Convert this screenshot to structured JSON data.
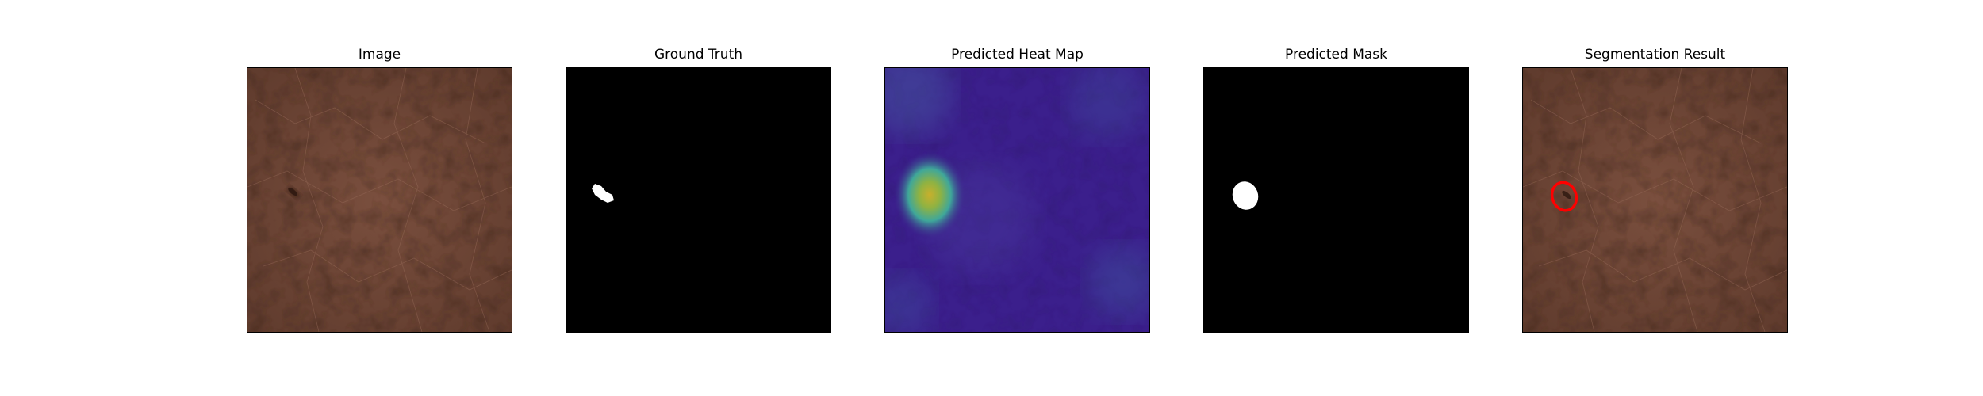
{
  "panels": [
    {
      "title": "Image"
    },
    {
      "title": "Ground Truth"
    },
    {
      "title": "Predicted Heat Map"
    },
    {
      "title": "Predicted Mask"
    },
    {
      "title": "Segmentation Result"
    }
  ],
  "colors": {
    "leather": "#6e4636",
    "mask_background": "#000000",
    "mask_foreground": "#ffffff",
    "heatmap_low": "#3b1f8c",
    "heatmap_high": "#c8c030",
    "contour": "#ff0000"
  }
}
